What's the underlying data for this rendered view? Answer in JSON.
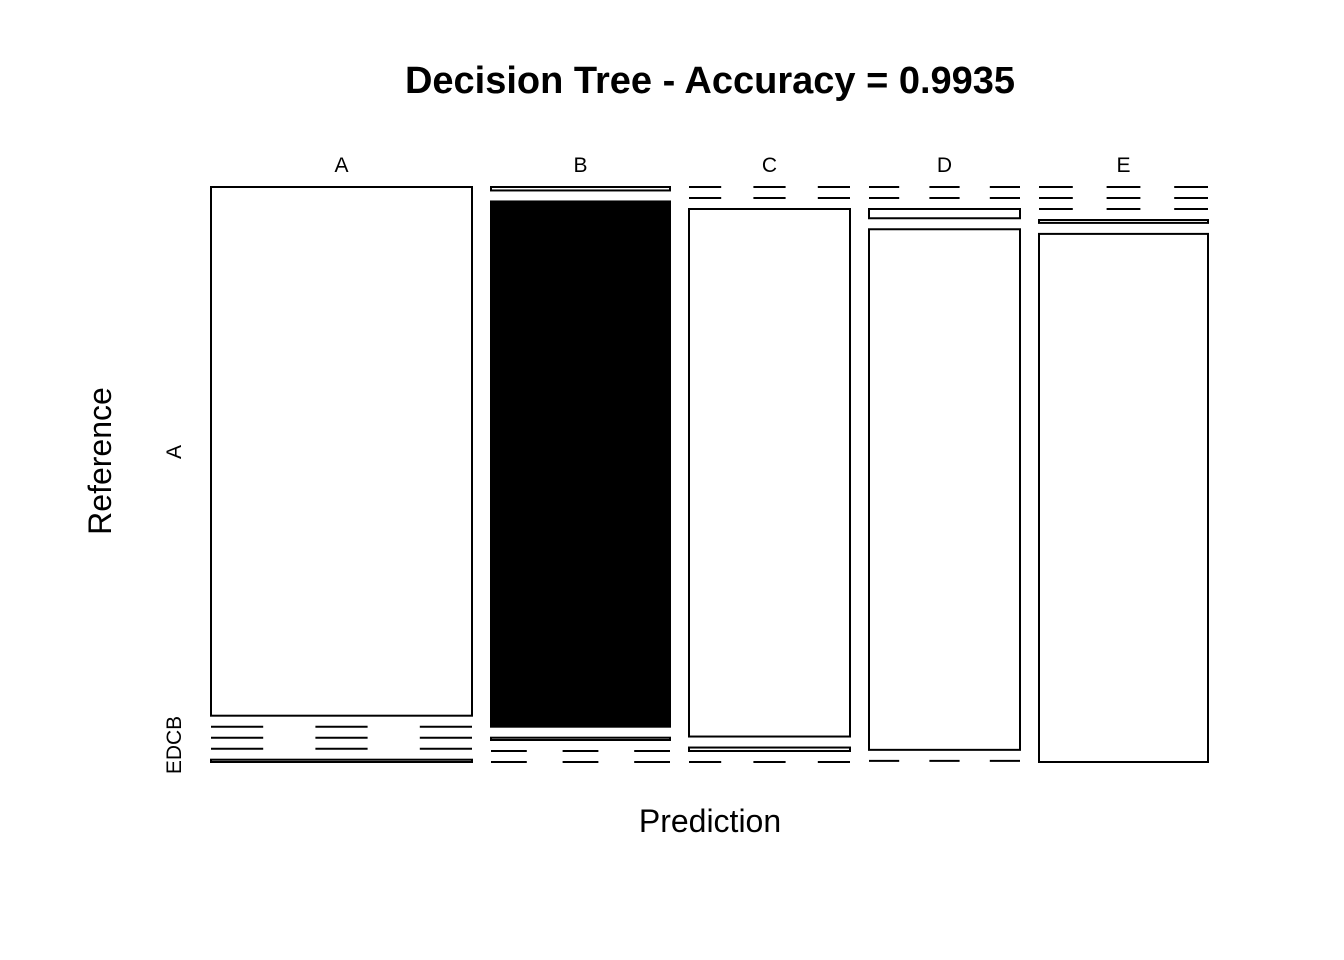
{
  "chart_data": {
    "type": "mosaic",
    "title": "Decision Tree - Accuracy = 0.9935",
    "xlabel": "Prediction",
    "ylabel": "Reference",
    "prediction_labels": [
      "A",
      "B",
      "C",
      "D",
      "E"
    ],
    "reference_labels": [
      "A",
      "B",
      "C",
      "D",
      "E"
    ],
    "highlighted_cell": {
      "prediction": "B",
      "reference": "A"
    },
    "colors": {
      "background": "#ffffff",
      "stroke": "#000000",
      "highlight": "#000000"
    },
    "cells": [
      {
        "prediction": "A",
        "reference": "A",
        "value": 0.917
      },
      {
        "prediction": "A",
        "reference": "B",
        "value": 0.0
      },
      {
        "prediction": "A",
        "reference": "C",
        "value": 0.0
      },
      {
        "prediction": "A",
        "reference": "D",
        "value": 0.0
      },
      {
        "prediction": "A",
        "reference": "E",
        "value": 0.004
      },
      {
        "prediction": "B",
        "reference": "A",
        "value": 0.006
      },
      {
        "prediction": "B",
        "reference": "B",
        "value": 0.911
      },
      {
        "prediction": "B",
        "reference": "C",
        "value": 0.004
      },
      {
        "prediction": "B",
        "reference": "D",
        "value": 0.0
      },
      {
        "prediction": "B",
        "reference": "E",
        "value": 0.0
      },
      {
        "prediction": "C",
        "reference": "A",
        "value": 0.0
      },
      {
        "prediction": "C",
        "reference": "B",
        "value": 0.0
      },
      {
        "prediction": "C",
        "reference": "C",
        "value": 0.913
      },
      {
        "prediction": "C",
        "reference": "D",
        "value": 0.006
      },
      {
        "prediction": "C",
        "reference": "E",
        "value": 0.0
      },
      {
        "prediction": "D",
        "reference": "A",
        "value": 0.0
      },
      {
        "prediction": "D",
        "reference": "B",
        "value": 0.0
      },
      {
        "prediction": "D",
        "reference": "C",
        "value": 0.016
      },
      {
        "prediction": "D",
        "reference": "D",
        "value": 0.9
      },
      {
        "prediction": "D",
        "reference": "E",
        "value": 0.002
      },
      {
        "prediction": "E",
        "reference": "A",
        "value": 0.0
      },
      {
        "prediction": "E",
        "reference": "B",
        "value": 0.0
      },
      {
        "prediction": "E",
        "reference": "C",
        "value": 0.0
      },
      {
        "prediction": "E",
        "reference": "D",
        "value": 0.005
      },
      {
        "prediction": "E",
        "reference": "E",
        "value": 0.913
      }
    ]
  }
}
